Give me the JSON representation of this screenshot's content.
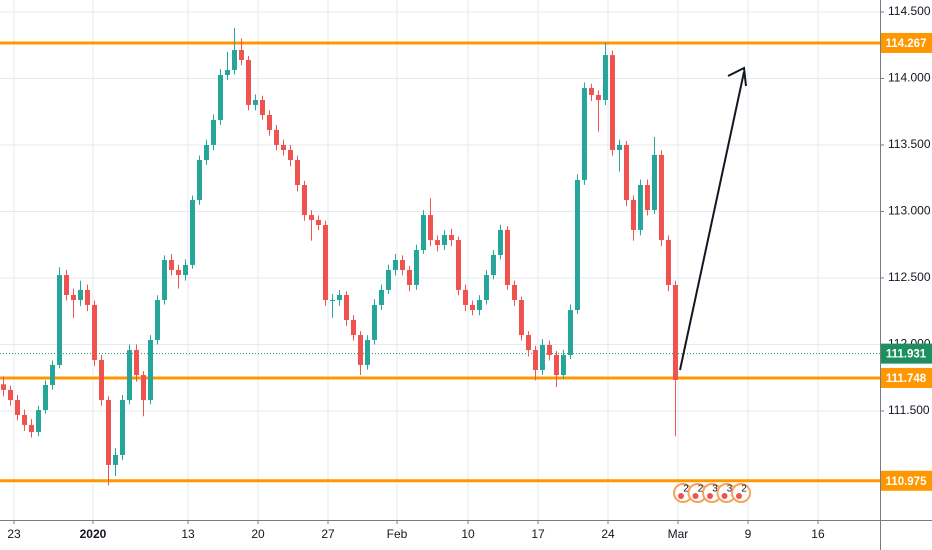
{
  "chart_data": {
    "type": "candlestick",
    "up_color": "#26a69a",
    "down_color": "#ef5350",
    "grid": true,
    "xlim": [
      0,
      62.86
    ],
    "ylim": [
      110.68,
      114.59
    ],
    "xticks": [
      {
        "value": 1.0,
        "label": "23"
      },
      {
        "value": 6.64,
        "label": "2020"
      },
      {
        "value": 13.43,
        "label": "13"
      },
      {
        "value": 18.43,
        "label": "20"
      },
      {
        "value": 23.43,
        "label": "27"
      },
      {
        "value": 28.36,
        "label": "Feb"
      },
      {
        "value": 33.43,
        "label": "10"
      },
      {
        "value": 38.43,
        "label": "17"
      },
      {
        "value": 43.43,
        "label": "24"
      },
      {
        "value": 48.43,
        "label": "Mar"
      },
      {
        "value": 53.43,
        "label": "9"
      },
      {
        "value": 58.43,
        "label": "16"
      }
    ],
    "yticks": [
      {
        "value": 111.5,
        "label": "111.500"
      },
      {
        "value": 112.0,
        "label": "112.000"
      },
      {
        "value": 112.5,
        "label": "112.500"
      },
      {
        "value": 113.0,
        "label": "113.000"
      },
      {
        "value": 113.5,
        "label": "113.500"
      },
      {
        "value": 114.0,
        "label": "114.000"
      },
      {
        "value": 114.5,
        "label": "114.500"
      }
    ],
    "levels": [
      114.267,
      111.748,
      110.975
    ],
    "level_color": "#ff9800",
    "last_price": 111.931,
    "last_price_color": "#1e8f5e",
    "events": [
      2,
      2,
      3,
      3,
      2
    ],
    "x": [
      0.25,
      0.75,
      1.25,
      1.75,
      2.25,
      2.75,
      3.25,
      3.75,
      4.25,
      4.75,
      5.25,
      5.75,
      6.25,
      6.75,
      7.25,
      7.75,
      8.25,
      8.75,
      9.25,
      9.75,
      10.25,
      10.75,
      11.25,
      11.75,
      12.25,
      12.75,
      13.25,
      13.75,
      14.25,
      14.75,
      15.25,
      15.75,
      16.25,
      16.75,
      17.25,
      17.75,
      18.25,
      18.75,
      19.25,
      19.75,
      20.25,
      20.75,
      21.25,
      21.75,
      22.25,
      22.75,
      23.25,
      23.75,
      24.25,
      24.75,
      25.25,
      25.75,
      26.25,
      26.75,
      27.25,
      27.75,
      28.25,
      28.75,
      29.25,
      29.75,
      30.25,
      30.75,
      31.25,
      31.75,
      32.25,
      32.75,
      33.25,
      33.75,
      34.25,
      34.75,
      35.25,
      35.75,
      36.25,
      36.75,
      37.25,
      37.75,
      38.25,
      38.75,
      39.25,
      39.75,
      40.25,
      40.75,
      41.25,
      41.75,
      42.25,
      42.75,
      43.25,
      43.75,
      44.25,
      44.75,
      45.25,
      45.75,
      46.25,
      46.75,
      47.25,
      47.75,
      48.25
    ],
    "open": [
      111.7,
      111.658,
      111.582,
      111.47,
      111.395,
      111.342,
      111.507,
      111.695,
      111.846,
      112.522,
      112.372,
      112.334,
      112.41,
      112.297,
      111.883,
      111.582,
      111.094,
      111.169,
      111.582,
      111.958,
      111.77,
      111.582,
      112.034,
      112.334,
      112.635,
      112.56,
      112.522,
      112.598,
      113.086,
      113.387,
      113.5,
      113.688,
      114.026,
      114.064,
      114.214,
      114.139,
      113.801,
      113.838,
      113.725,
      113.613,
      113.5,
      113.462,
      113.387,
      113.199,
      112.973,
      112.936,
      112.898,
      112.334,
      112.334,
      112.372,
      112.184,
      112.071,
      111.846,
      112.034,
      112.297,
      112.41,
      112.56,
      112.635,
      112.56,
      112.447,
      112.71,
      112.973,
      112.785,
      112.748,
      112.823,
      112.785,
      112.41,
      112.297,
      112.259,
      112.334,
      112.522,
      112.673,
      112.861,
      112.447,
      112.334,
      112.071,
      111.958,
      111.808,
      111.996,
      111.921,
      111.77,
      111.921,
      112.259,
      113.237,
      113.928,
      113.876,
      113.838,
      114.176,
      113.462,
      113.5,
      113.086,
      112.861,
      113.199,
      113.011,
      113.425,
      112.785,
      112.447
    ],
    "high": [
      111.76,
      111.69,
      111.62,
      111.51,
      111.44,
      111.54,
      111.73,
      111.88,
      112.58,
      112.56,
      112.42,
      112.48,
      112.45,
      112.33,
      111.92,
      111.61,
      111.22,
      111.62,
      112.0,
      112.0,
      111.8,
      112.07,
      112.37,
      112.67,
      112.68,
      112.6,
      112.64,
      113.12,
      113.42,
      113.54,
      113.73,
      114.07,
      114.2,
      114.38,
      114.3,
      114.17,
      113.88,
      113.87,
      113.76,
      113.65,
      113.54,
      113.5,
      113.42,
      113.23,
      113.01,
      112.97,
      112.93,
      112.38,
      112.41,
      112.4,
      112.22,
      112.1,
      112.07,
      112.34,
      112.45,
      112.6,
      112.68,
      112.67,
      112.59,
      112.75,
      113.01,
      113.1,
      112.82,
      112.86,
      112.87,
      112.81,
      112.45,
      112.33,
      112.37,
      112.56,
      112.71,
      112.9,
      112.89,
      112.48,
      112.36,
      112.1,
      111.99,
      112.04,
      112.03,
      111.95,
      111.96,
      112.3,
      113.28,
      113.97,
      113.96,
      113.91,
      114.27,
      114.21,
      113.54,
      113.53,
      113.12,
      113.24,
      113.24,
      113.56,
      113.46,
      112.82,
      112.48
    ],
    "low": [
      111.61,
      111.54,
      111.43,
      111.35,
      111.3,
      111.31,
      111.48,
      111.66,
      111.82,
      112.33,
      112.2,
      112.29,
      112.25,
      111.84,
      111.54,
      110.94,
      111.01,
      111.13,
      111.55,
      111.72,
      111.46,
      111.55,
      112.0,
      112.3,
      112.52,
      112.42,
      112.48,
      112.57,
      113.05,
      113.35,
      113.46,
      113.65,
      113.99,
      114.03,
      114.1,
      113.76,
      113.76,
      113.69,
      113.57,
      113.46,
      113.42,
      113.34,
      113.15,
      112.93,
      112.78,
      112.86,
      112.29,
      112.2,
      112.29,
      112.14,
      112.03,
      111.77,
      111.81,
      112.0,
      112.26,
      112.38,
      112.52,
      112.52,
      112.4,
      112.41,
      112.68,
      112.74,
      112.7,
      112.71,
      112.74,
      112.37,
      112.25,
      112.22,
      112.22,
      112.3,
      112.49,
      112.64,
      112.41,
      112.29,
      112.03,
      111.91,
      111.73,
      111.77,
      111.88,
      111.68,
      111.74,
      111.89,
      112.23,
      113.2,
      113.83,
      113.6,
      113.8,
      113.42,
      113.3,
      113.04,
      112.78,
      112.82,
      112.97,
      112.98,
      112.74,
      112.4,
      111.31
    ],
    "close": [
      111.658,
      111.582,
      111.47,
      111.395,
      111.342,
      111.507,
      111.695,
      111.846,
      112.522,
      112.372,
      112.334,
      112.41,
      112.297,
      111.883,
      111.582,
      111.094,
      111.169,
      111.582,
      111.958,
      111.77,
      111.582,
      112.034,
      112.334,
      112.635,
      112.56,
      112.522,
      112.598,
      113.086,
      113.387,
      113.5,
      113.688,
      114.026,
      114.064,
      114.214,
      114.139,
      113.801,
      113.838,
      113.725,
      113.613,
      113.5,
      113.462,
      113.387,
      113.199,
      112.973,
      112.936,
      112.898,
      112.334,
      112.334,
      112.372,
      112.184,
      112.071,
      111.846,
      112.034,
      112.297,
      112.41,
      112.56,
      112.635,
      112.56,
      112.447,
      112.71,
      112.973,
      112.785,
      112.748,
      112.823,
      112.785,
      112.41,
      112.297,
      112.259,
      112.334,
      112.522,
      112.673,
      112.861,
      112.447,
      112.334,
      112.071,
      111.958,
      111.808,
      111.996,
      111.921,
      111.77,
      111.921,
      112.259,
      113.237,
      113.928,
      113.876,
      113.838,
      114.176,
      113.462,
      113.5,
      113.086,
      112.861,
      113.199,
      113.011,
      113.425,
      112.785,
      112.447,
      111.733
    ]
  }
}
